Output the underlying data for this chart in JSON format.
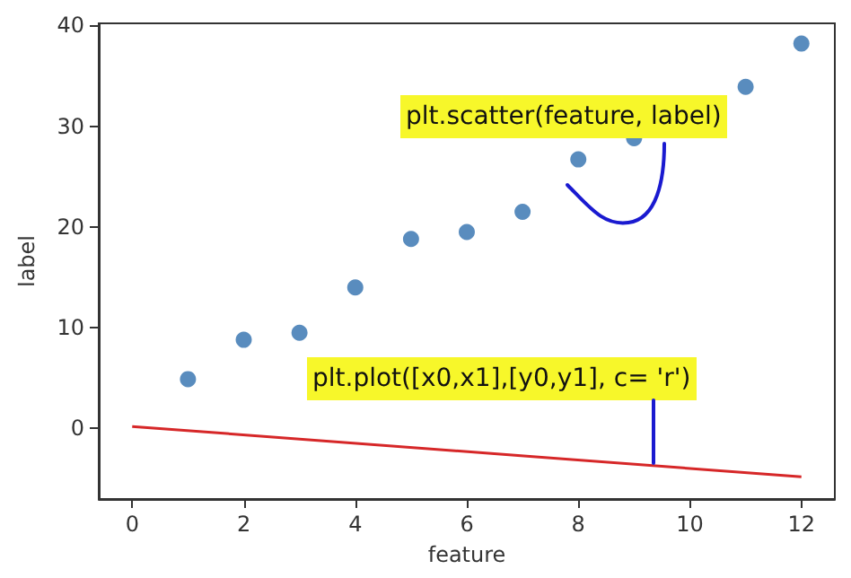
{
  "chart_data": {
    "type": "scatter",
    "xlabel": "feature",
    "ylabel": "label",
    "annotations": [
      "plt.scatter(feature, label)",
      "plt.plot([x0,x1],[y0,y1], c= 'r')"
    ],
    "xlim": [
      -0.6,
      12.6
    ],
    "ylim": [
      -7,
      40.2
    ],
    "xticks": [
      0,
      2,
      4,
      6,
      8,
      10,
      12
    ],
    "yticks": [
      0,
      10,
      20,
      30,
      40
    ],
    "grid": false,
    "series": [
      {
        "marker": "circle",
        "color": "#2f6fae",
        "x": [
          1,
          2,
          3,
          4,
          5,
          6,
          7,
          8,
          9,
          10,
          11,
          12
        ],
        "values": [
          4.9,
          8.8,
          9.5,
          14.0,
          18.8,
          19.5,
          21.5,
          26.7,
          28.8,
          null,
          33.9,
          38.2
        ]
      },
      {
        "type": "line",
        "marker": "none",
        "color": "#d62728",
        "x": [
          0,
          12
        ],
        "values": [
          0.2,
          -4.8
        ]
      }
    ]
  }
}
